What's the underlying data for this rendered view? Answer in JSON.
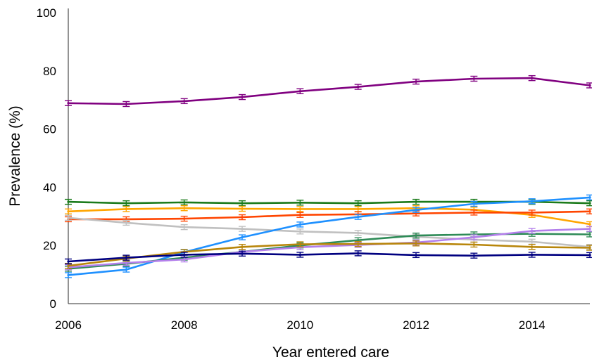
{
  "chart_data": {
    "type": "line",
    "title": "",
    "xlabel": "Year entered care",
    "ylabel": "Prevalence (%)",
    "x": [
      2006,
      2007,
      2008,
      2009,
      2010,
      2011,
      2012,
      2013,
      2014,
      2015
    ],
    "xlim": [
      2006,
      2015
    ],
    "ylim": [
      0,
      100
    ],
    "xticks": [
      "2006",
      "2008",
      "2010",
      "2012",
      "2014"
    ],
    "yticks": [
      "0",
      "20",
      "40",
      "60",
      "80",
      "100"
    ],
    "grid": false,
    "error_bars": true,
    "series": [
      {
        "color": "#800080",
        "values": [
          68.9,
          68.6,
          69.6,
          71.0,
          73.0,
          74.5,
          76.3,
          77.3,
          77.5,
          75.0
        ]
      },
      {
        "color": "#1a7a1a",
        "values": [
          35.0,
          34.5,
          34.8,
          34.5,
          34.7,
          34.5,
          35.0,
          35.0,
          35.0,
          34.5
        ]
      },
      {
        "color": "#ffa500",
        "values": [
          31.7,
          32.5,
          32.8,
          32.6,
          32.5,
          32.5,
          32.8,
          32.3,
          30.5,
          27.3
        ]
      },
      {
        "color": "#ff4500",
        "values": [
          29.0,
          29.0,
          29.2,
          29.7,
          30.5,
          30.7,
          31.0,
          31.3,
          31.3,
          31.7
        ]
      },
      {
        "color": "#c0c0c0",
        "values": [
          29.5,
          27.8,
          26.3,
          25.7,
          24.8,
          24.3,
          23.0,
          22.0,
          21.3,
          19.5
        ]
      },
      {
        "color": "#1e90ff",
        "values": [
          9.8,
          11.7,
          17.7,
          22.8,
          27.2,
          29.8,
          32.2,
          34.3,
          35.2,
          36.5
        ]
      },
      {
        "color": "#2e8b57",
        "values": [
          12.0,
          13.7,
          15.8,
          17.8,
          20.0,
          21.8,
          23.4,
          23.8,
          24.0,
          23.8
        ]
      },
      {
        "color": "#b37feb",
        "values": [
          12.5,
          14.0,
          15.2,
          17.8,
          19.4,
          20.2,
          21.0,
          22.8,
          25.0,
          25.7
        ]
      },
      {
        "color": "#b8860b",
        "values": [
          13.0,
          15.5,
          17.8,
          19.5,
          20.4,
          20.5,
          20.7,
          20.3,
          19.5,
          19.2
        ]
      },
      {
        "color": "#000080",
        "values": [
          14.5,
          15.8,
          16.8,
          17.2,
          16.8,
          17.3,
          16.7,
          16.5,
          16.8,
          16.7
        ]
      }
    ]
  }
}
